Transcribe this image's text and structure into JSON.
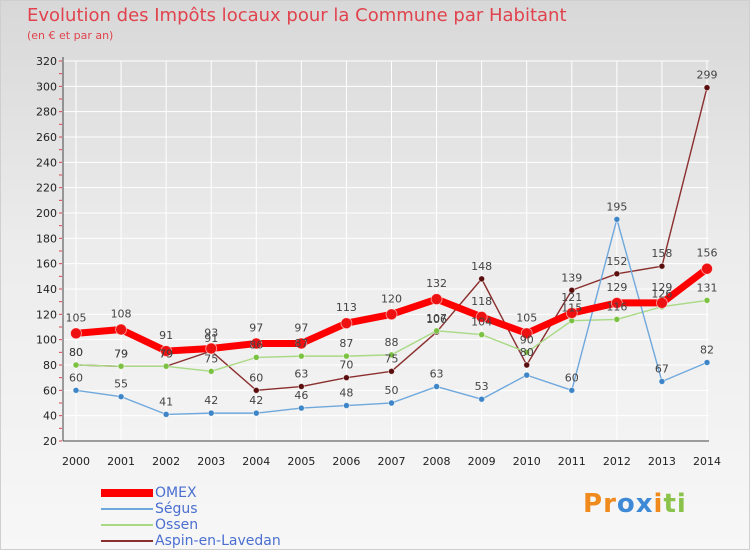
{
  "header": {
    "title": "Evolution des Impôts locaux pour la Commune par Habitant",
    "subtitle": "(en € et par an)"
  },
  "brand": {
    "text": "Proxiti"
  },
  "colors": {
    "title": "#e0434d",
    "grid": "#ffffff",
    "brand_p": "#f08a1c",
    "brand_r": "#f08a1c",
    "brand_o": "#3e8ad6",
    "brand_x": "#3e8ad6",
    "brand_i": "#f08a1c",
    "brand_t": "#8bc34a",
    "brand_i2": "#8bc34a"
  },
  "chart_data": {
    "type": "line",
    "title": "Evolution des Impôts locaux pour la Commune par Habitant",
    "subtitle": "(en € et par an)",
    "xlabel": "",
    "ylabel": "",
    "x": [
      2000,
      2001,
      2002,
      2003,
      2004,
      2005,
      2006,
      2007,
      2008,
      2009,
      2010,
      2011,
      2012,
      2013,
      2014
    ],
    "ylim": [
      20,
      320
    ],
    "yticks": [
      20,
      40,
      60,
      80,
      100,
      120,
      140,
      160,
      180,
      200,
      220,
      240,
      260,
      280,
      300,
      320
    ],
    "grid": true,
    "legend_position": "bottom-left",
    "series": [
      {
        "name": "OMEX",
        "color": "#ff0000",
        "marker_color": "#ee1111",
        "width": 7,
        "marker_r": 5.5,
        "values": [
          105,
          108,
          91,
          93,
          97,
          97,
          113,
          120,
          132,
          118,
          105,
          121,
          129,
          129,
          156
        ],
        "labels": [
          "105",
          "108",
          "91",
          "93",
          "97",
          "97",
          "113",
          "120",
          "132",
          "118",
          "105",
          "121",
          "129",
          "129",
          "156"
        ]
      },
      {
        "name": "Ségus",
        "color": "#6fa8dc",
        "marker_color": "#3d85c6",
        "width": 1.4,
        "marker_r": 3,
        "values": [
          60,
          55,
          41,
          42,
          42,
          46,
          48,
          50,
          63,
          53,
          72,
          60,
          195,
          67,
          82
        ],
        "labels": [
          "60",
          "55",
          "41",
          "42",
          "42",
          "46",
          "48",
          "50",
          "63",
          "53",
          "",
          "60",
          "195",
          "67",
          "82"
        ]
      },
      {
        "name": "Ossen",
        "color": "#a8d983",
        "marker_color": "#7cc242",
        "width": 1.4,
        "marker_r": 3,
        "values": [
          80,
          79,
          79,
          75,
          86,
          87,
          87,
          88,
          107,
          104,
          90,
          115,
          116,
          126,
          131
        ],
        "labels": [
          "80",
          "79",
          "79",
          "75",
          "86",
          "87",
          "87",
          "88",
          "107",
          "104",
          "90",
          "115",
          "116",
          "126",
          "131"
        ]
      },
      {
        "name": "Aspin-en-Lavedan",
        "color": "#8b2e2e",
        "marker_color": "#5a0e0e",
        "width": 1.4,
        "marker_r": 3,
        "values": [
          80,
          79,
          79,
          91,
          60,
          63,
          70,
          75,
          106,
          148,
          80,
          139,
          152,
          158,
          299
        ],
        "labels": [
          "80",
          "79",
          "79",
          "91",
          "60",
          "63",
          "70",
          "75",
          "106",
          "148",
          "80",
          "139",
          "152",
          "158",
          "299"
        ]
      }
    ]
  }
}
